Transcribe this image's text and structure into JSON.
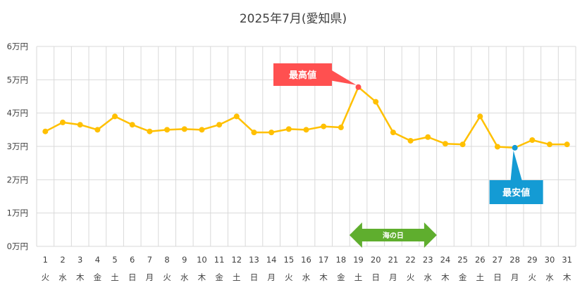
{
  "chart_data": {
    "type": "line",
    "title": "2025年7月(愛知県)",
    "y_ticks": [
      "0万円",
      "1万円",
      "2万円",
      "3万円",
      "4万円",
      "5万円",
      "6万円"
    ],
    "ylim": [
      0,
      60000
    ],
    "days": [
      "1",
      "2",
      "3",
      "4",
      "5",
      "6",
      "7",
      "8",
      "9",
      "10",
      "11",
      "12",
      "13",
      "14",
      "15",
      "16",
      "17",
      "18",
      "19",
      "20",
      "21",
      "22",
      "23",
      "24",
      "25",
      "26",
      "27",
      "28",
      "29",
      "30",
      "31"
    ],
    "weekdays": [
      "火",
      "水",
      "木",
      "金",
      "土",
      "日",
      "月",
      "火",
      "水",
      "木",
      "金",
      "土",
      "日",
      "月",
      "火",
      "水",
      "木",
      "金",
      "土",
      "日",
      "月",
      "火",
      "水",
      "木",
      "金",
      "土",
      "日",
      "月",
      "火",
      "水",
      "木"
    ],
    "values": [
      34500,
      37200,
      36500,
      35000,
      39000,
      36500,
      34500,
      35000,
      35200,
      35000,
      36500,
      39000,
      34200,
      34200,
      35200,
      35000,
      36000,
      35700,
      47800,
      43400,
      34200,
      31700,
      32800,
      30800,
      30600,
      39000,
      29900,
      29600,
      31900,
      30600,
      30600
    ],
    "grid": true,
    "legend": "none",
    "line_color": "#FFC000",
    "callouts": {
      "max": {
        "label": "最高値",
        "index": 18,
        "color": "#FF5050"
      },
      "min": {
        "label": "最安値",
        "index": 27,
        "color": "#149BD4"
      }
    },
    "holiday": {
      "label": "海の日",
      "index": 20,
      "color": "#5FAE2E"
    }
  }
}
